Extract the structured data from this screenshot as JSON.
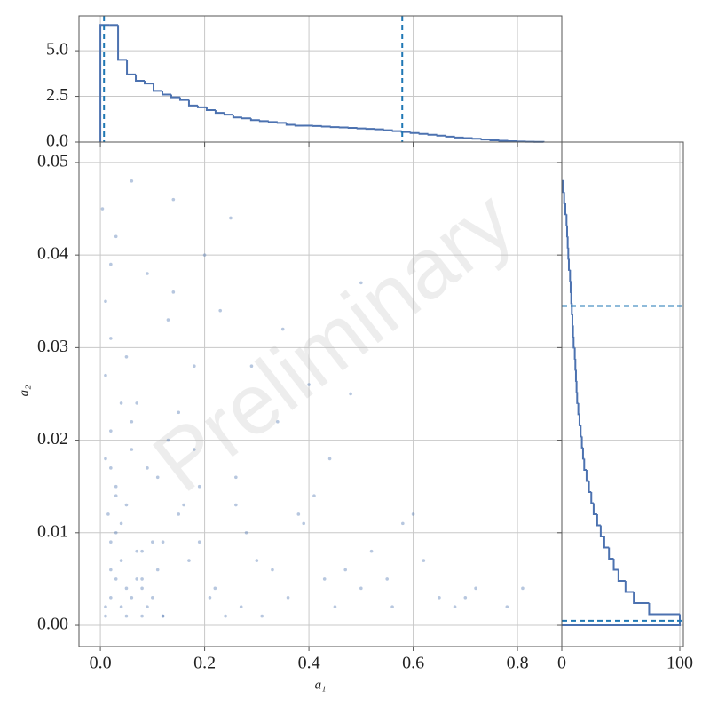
{
  "chart_data": [
    {
      "type": "scatter",
      "xlabel": "a₁",
      "ylabel": "a₂",
      "watermark": "Preliminary",
      "color": "#4c72b0",
      "grid": true,
      "xlim": [
        -0.041,
        0.885
      ],
      "ylim": [
        -0.0023,
        0.0522
      ],
      "xticks": [
        {
          "value": 0,
          "label": "0.0"
        },
        {
          "value": 0.2,
          "label": "0.2"
        },
        {
          "value": 0.4,
          "label": "0.4"
        },
        {
          "value": 0.6,
          "label": "0.6"
        },
        {
          "value": 0.8,
          "label": "0.8"
        }
      ],
      "yticks": [
        {
          "value": 0,
          "label": "0.00"
        },
        {
          "value": 0.01,
          "label": "0.01"
        },
        {
          "value": 0.02,
          "label": "0.02"
        },
        {
          "value": 0.03,
          "label": "0.03"
        },
        {
          "value": 0.04,
          "label": "0.04"
        },
        {
          "value": 0.05,
          "label": "0.05"
        }
      ],
      "x": [
        0.01,
        0.03,
        0.05,
        0.02,
        0.08,
        0.12,
        0.004,
        0.15,
        0.21,
        0.06,
        0.33,
        0.02,
        0.09,
        0.27,
        0.41,
        0.01,
        0.07,
        0.18,
        0.5,
        0.04,
        0.13,
        0.24,
        0.62,
        0.03,
        0.11,
        0.36,
        0.02,
        0.07,
        0.19,
        0.45,
        0.05,
        0.01,
        0.29,
        0.55,
        0.08,
        0.14,
        0.03,
        0.22,
        0.68,
        0.06,
        0.38,
        0.02,
        0.1,
        0.17,
        0.48,
        0.04,
        0.26,
        0.01,
        0.72,
        0.12,
        0.31,
        0.05,
        0.09,
        0.58,
        0.02,
        0.2,
        0.43,
        0.07,
        0.15,
        0.03,
        0.35,
        0.78,
        0.11,
        0.06,
        0.25,
        0.52,
        0.01,
        0.16,
        0.4,
        0.08,
        0.04,
        0.65,
        0.13,
        0.28,
        0.02,
        0.47,
        0.09,
        0.19,
        0.6,
        0.05,
        0.34,
        0.03,
        0.23,
        0.7,
        0.1,
        0.015,
        0.44,
        0.14,
        0.3,
        0.06,
        0.56,
        0.02,
        0.18,
        0.39,
        0.08,
        0.12,
        0.81,
        0.04,
        0.26,
        0.5
      ],
      "y": [
        0.002,
        0.015,
        0.004,
        0.031,
        0.008,
        0.001,
        0.045,
        0.012,
        0.003,
        0.022,
        0.006,
        0.009,
        0.038,
        0.002,
        0.014,
        0.027,
        0.005,
        0.019,
        0.004,
        0.011,
        0.033,
        0.001,
        0.007,
        0.042,
        0.016,
        0.003,
        0.006,
        0.024,
        0.009,
        0.002,
        0.013,
        0.018,
        0.028,
        0.005,
        0.001,
        0.036,
        0.01,
        0.004,
        0.002,
        0.048,
        0.012,
        0.021,
        0.003,
        0.007,
        0.025,
        0.002,
        0.016,
        0.035,
        0.004,
        0.009,
        0.001,
        0.029,
        0.017,
        0.011,
        0.003,
        0.04,
        0.005,
        0.008,
        0.023,
        0.014,
        0.032,
        0.002,
        0.006,
        0.019,
        0.044,
        0.008,
        0.001,
        0.013,
        0.026,
        0.004,
        0.007,
        0.003,
        0.02,
        0.01,
        0.039,
        0.006,
        0.002,
        0.015,
        0.012,
        0.001,
        0.022,
        0.005,
        0.034,
        0.003,
        0.009,
        0.012,
        0.018,
        0.046,
        0.007,
        0.003,
        0.002,
        0.017,
        0.028,
        0.011,
        0.005,
        0.001,
        0.004,
        0.024,
        0.013,
        0.037
      ]
    },
    {
      "type": "histogram",
      "orientation": "vertical",
      "color": "#4c72b0",
      "line_color": "#1f77b4",
      "grid": true,
      "xlim": [
        -0.041,
        0.885
      ],
      "ylim": [
        0,
        6.9
      ],
      "yticks": [
        {
          "value": 0,
          "label": "0.0"
        },
        {
          "value": 2.5,
          "label": "2.5"
        },
        {
          "value": 5,
          "label": "5.0"
        }
      ],
      "bins": [
        0,
        0.017,
        0.034,
        0.051,
        0.068,
        0.085,
        0.102,
        0.119,
        0.136,
        0.153,
        0.17,
        0.187,
        0.204,
        0.221,
        0.238,
        0.255,
        0.272,
        0.289,
        0.306,
        0.323,
        0.34,
        0.357,
        0.374,
        0.391,
        0.408,
        0.425,
        0.442,
        0.459,
        0.476,
        0.493,
        0.51,
        0.527,
        0.544,
        0.561,
        0.578,
        0.595,
        0.612,
        0.629,
        0.646,
        0.663,
        0.68,
        0.697,
        0.714,
        0.731,
        0.748,
        0.765,
        0.782,
        0.799,
        0.816,
        0.833,
        0.85
      ],
      "counts": [
        6.4,
        6.4,
        4.5,
        3.7,
        3.35,
        3.2,
        2.8,
        2.6,
        2.45,
        2.3,
        2.0,
        1.9,
        1.75,
        1.6,
        1.5,
        1.35,
        1.3,
        1.2,
        1.15,
        1.1,
        1.05,
        0.95,
        0.9,
        0.9,
        0.88,
        0.85,
        0.82,
        0.8,
        0.78,
        0.75,
        0.72,
        0.7,
        0.65,
        0.6,
        0.55,
        0.5,
        0.45,
        0.4,
        0.35,
        0.3,
        0.25,
        0.22,
        0.18,
        0.14,
        0.1,
        0.07,
        0.05,
        0.03,
        0.02,
        0.01
      ],
      "lines": [
        0.007,
        0.579
      ]
    },
    {
      "type": "histogram",
      "orientation": "horizontal",
      "color": "#4c72b0",
      "line_color": "#1f77b4",
      "grid": true,
      "xlim": [
        0,
        103
      ],
      "ylim": [
        -0.0023,
        0.0522
      ],
      "xticks": [
        0,
        100
      ],
      "bins": [
        0,
        0.0012,
        0.0024,
        0.0036,
        0.0048,
        0.006,
        0.0072,
        0.0084,
        0.0096,
        0.0108,
        0.012,
        0.0132,
        0.0144,
        0.0156,
        0.0168,
        0.018,
        0.0192,
        0.0204,
        0.0216,
        0.0228,
        0.024,
        0.0252,
        0.0264,
        0.0276,
        0.0288,
        0.03,
        0.0312,
        0.0324,
        0.0336,
        0.0348,
        0.036,
        0.0372,
        0.0384,
        0.0396,
        0.0408,
        0.042,
        0.0432,
        0.0444,
        0.0456,
        0.0468,
        0.048
      ],
      "counts": [
        100,
        74,
        61,
        54,
        48,
        44,
        40,
        36,
        33,
        30,
        27,
        25,
        23,
        21,
        19,
        18,
        17,
        16,
        15,
        14,
        13,
        12.5,
        12,
        11.5,
        11,
        10,
        9.5,
        9,
        8.5,
        8,
        7.5,
        7,
        6,
        5.5,
        5,
        4.5,
        4,
        3,
        2,
        1
      ],
      "lines": [
        0.0345,
        0.0005
      ]
    }
  ]
}
